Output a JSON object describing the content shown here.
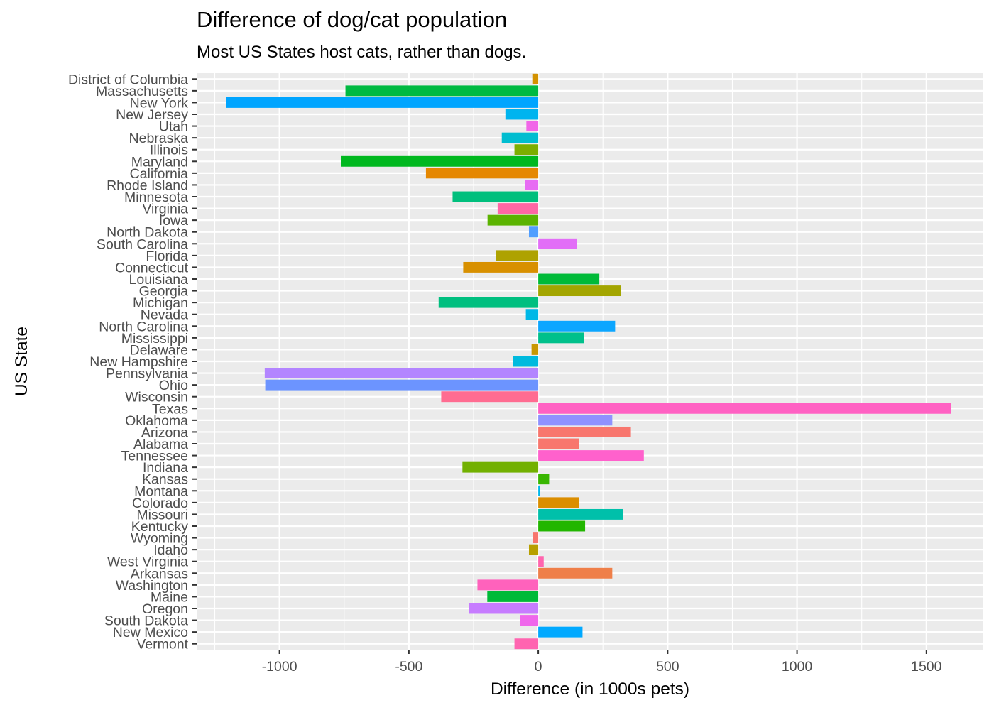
{
  "chart_data": {
    "type": "bar",
    "orientation": "horizontal",
    "title": "Difference of dog/cat population",
    "subtitle": "Most US States host cats, rather than dogs.",
    "xlabel": "Difference (in 1000s pets)",
    "ylabel": "US State",
    "xlim": [
      -1320,
      1720
    ],
    "xticks": [
      -1000,
      -500,
      0,
      500,
      1000,
      1500
    ],
    "xtick_labels": [
      "-1000",
      "-500",
      "0",
      "500",
      "1000",
      "1500"
    ],
    "grid": true,
    "legend": "none",
    "categories": [
      "District of Columbia",
      "Massachusetts",
      "New York",
      "New Jersey",
      "Utah",
      "Nebraska",
      "Illinois",
      "Maryland",
      "California",
      "Rhode Island",
      "Minnesota",
      "Virginia",
      "Iowa",
      "North Dakota",
      "South Carolina",
      "Florida",
      "Connecticut",
      "Louisiana",
      "Georgia",
      "Michigan",
      "Nevada",
      "North Carolina",
      "Mississippi",
      "Delaware",
      "New Hampshire",
      "Pennsylvania",
      "Ohio",
      "Wisconsin",
      "Texas",
      "Oklahoma",
      "Arizona",
      "Alabama",
      "Tennessee",
      "Indiana",
      "Kansas",
      "Montana",
      "Colorado",
      "Missouri",
      "Kentucky",
      "Wyoming",
      "Idaho",
      "West Virginia",
      "Arkansas",
      "Washington",
      "Maine",
      "Oregon",
      "South Dakota",
      "New Mexico",
      "Vermont"
    ],
    "values": [
      -23,
      -745,
      -1205,
      -127,
      -46,
      -141,
      -92,
      -763,
      -434,
      -50,
      -331,
      -157,
      -196,
      -36,
      150,
      -163,
      -290,
      236,
      319,
      -385,
      -48,
      297,
      177,
      -26,
      -99,
      -1057,
      -1055,
      -375,
      1596,
      286,
      358,
      158,
      408,
      -293,
      42,
      7,
      158,
      328,
      181,
      -20,
      -36,
      21,
      286,
      -235,
      -197,
      -268,
      -70,
      171,
      -92
    ],
    "colors": [
      "#D39200",
      "#00BA42",
      "#00A5FF",
      "#00B4EF",
      "#F166E8",
      "#00BDD0",
      "#7CAE00",
      "#00B81F",
      "#E58700",
      "#E76BF3",
      "#00BF7D",
      "#FF67A4",
      "#5BB300",
      "#529EFF",
      "#E26EF7",
      "#AEA200",
      "#D89000",
      "#00BA38",
      "#A3A500",
      "#00BF7F",
      "#00B8E7",
      "#0CA6FF",
      "#00C08B",
      "#C99800",
      "#00BADE",
      "#B385FF",
      "#6C94FF",
      "#FF6C91",
      "#FF61C3",
      "#8F91FF",
      "#F8766D",
      "#F8766D",
      "#FF61CC",
      "#72B000",
      "#39B600",
      "#00B6EB",
      "#DB8E00",
      "#00C0AA",
      "#22B600",
      "#F8766D",
      "#B79F00",
      "#FF65AE",
      "#EF7F49",
      "#FF62BC",
      "#00BA38",
      "#C77CFF",
      "#EF67EB",
      "#00A9FF",
      "#FF64B0"
    ]
  }
}
